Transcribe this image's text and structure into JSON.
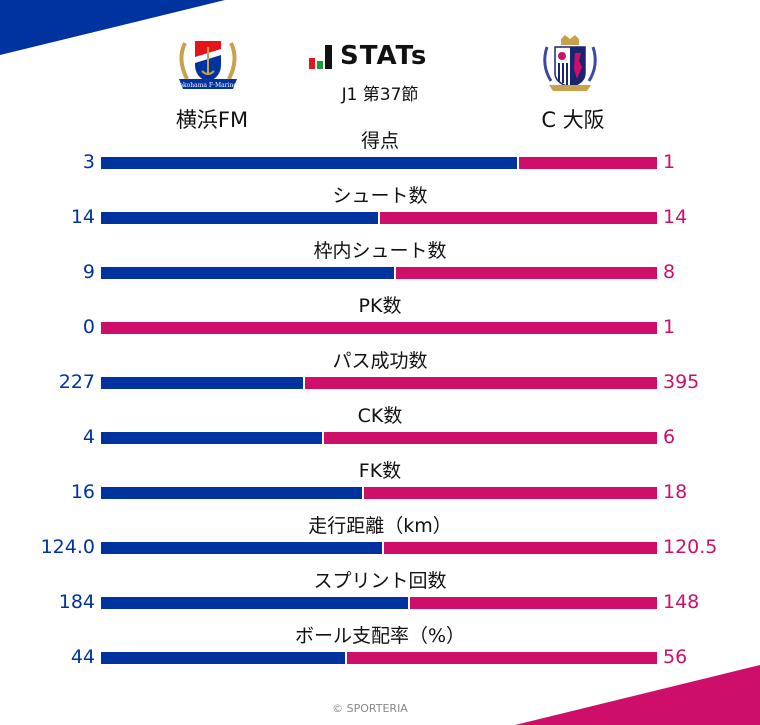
{
  "colors": {
    "home": "#0033a0",
    "away": "#ce0f69",
    "brand_red": "#e3141c",
    "brand_green": "#1a9a3a",
    "brand_black": "#111111"
  },
  "header": {
    "brand": "STATs",
    "round": "J1 第37節",
    "home_team": "横浜FM",
    "away_team": "C 大阪",
    "home_logo": "yokohama-f-marinos-crest",
    "away_logo": "cerezo-osaka-crest"
  },
  "stats": [
    {
      "label": "得点",
      "home": "3",
      "away": "1"
    },
    {
      "label": "シュート数",
      "home": "14",
      "away": "14"
    },
    {
      "label": "枠内シュート数",
      "home": "9",
      "away": "8"
    },
    {
      "label": "PK数",
      "home": "0",
      "away": "1"
    },
    {
      "label": "パス成功数",
      "home": "227",
      "away": "395"
    },
    {
      "label": "CK数",
      "home": "4",
      "away": "6"
    },
    {
      "label": "FK数",
      "home": "16",
      "away": "18"
    },
    {
      "label": "走行距離（km）",
      "home": "124.0",
      "away": "120.5"
    },
    {
      "label": "スプリント回数",
      "home": "184",
      "away": "148"
    },
    {
      "label": "ボール支配率（%）",
      "home": "44",
      "away": "56"
    }
  ],
  "footer": "© SPORTERIA",
  "chart_data": {
    "type": "bar",
    "orientation": "horizontal-stacked-100",
    "title": "STATs J1 第37節",
    "categories": [
      "得点",
      "シュート数",
      "枠内シュート数",
      "PK数",
      "パス成功数",
      "CK数",
      "FK数",
      "走行距離（km）",
      "スプリント回数",
      "ボール支配率（%）"
    ],
    "series": [
      {
        "name": "横浜FM",
        "color": "#0033a0",
        "values": [
          3,
          14,
          9,
          0,
          227,
          4,
          16,
          124.0,
          184,
          44
        ]
      },
      {
        "name": "C 大阪",
        "color": "#ce0f69",
        "values": [
          1,
          14,
          8,
          1,
          395,
          6,
          18,
          120.5,
          148,
          56
        ]
      }
    ],
    "xlabel": "",
    "ylabel": "",
    "grid": false,
    "legend": "team names at top (left: 横浜FM, right: C 大阪)"
  }
}
